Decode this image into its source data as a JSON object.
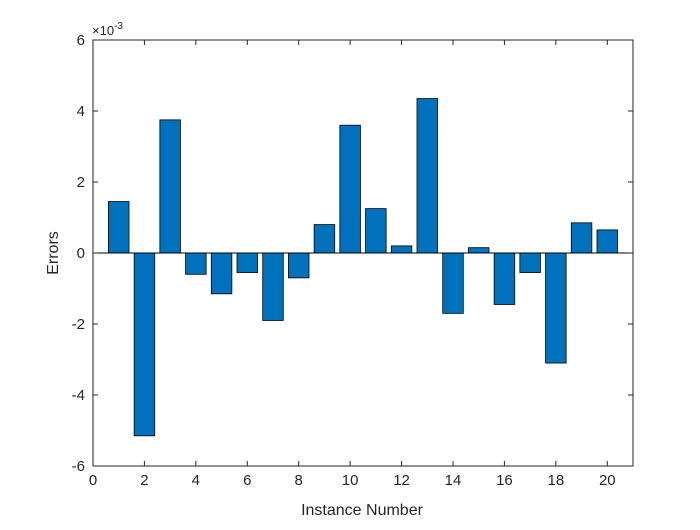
{
  "chart_data": {
    "type": "bar",
    "title": "",
    "xlabel": "Instance Number",
    "ylabel": "Errors",
    "y_exponent_label": "×10",
    "y_exponent_power": "-3",
    "x": [
      1,
      2,
      3,
      4,
      5,
      6,
      7,
      8,
      9,
      10,
      11,
      12,
      13,
      14,
      15,
      16,
      17,
      18,
      19,
      20
    ],
    "values": [
      1.45,
      -5.15,
      3.75,
      -0.6,
      -1.15,
      -0.55,
      -1.9,
      -0.7,
      0.8,
      3.6,
      1.25,
      0.2,
      4.35,
      -1.7,
      0.15,
      -1.45,
      -0.55,
      -3.1,
      0.85,
      0.65
    ],
    "value_scale": 0.001,
    "xlim": [
      0,
      21
    ],
    "ylim": [
      -6,
      6
    ],
    "xticks": [
      0,
      2,
      4,
      6,
      8,
      10,
      12,
      14,
      16,
      18,
      20
    ],
    "yticks": [
      -6,
      -4,
      -2,
      0,
      2,
      4,
      6
    ],
    "xtick_labels": [
      "0",
      "2",
      "4",
      "6",
      "8",
      "10",
      "12",
      "14",
      "16",
      "18",
      "20"
    ],
    "ytick_labels": [
      "-6",
      "-4",
      "-2",
      "0",
      "2",
      "4",
      "6"
    ],
    "grid": false,
    "bar_color": "#0072BD",
    "bar_edge_color": "#000000",
    "axis_color": "#262626"
  }
}
